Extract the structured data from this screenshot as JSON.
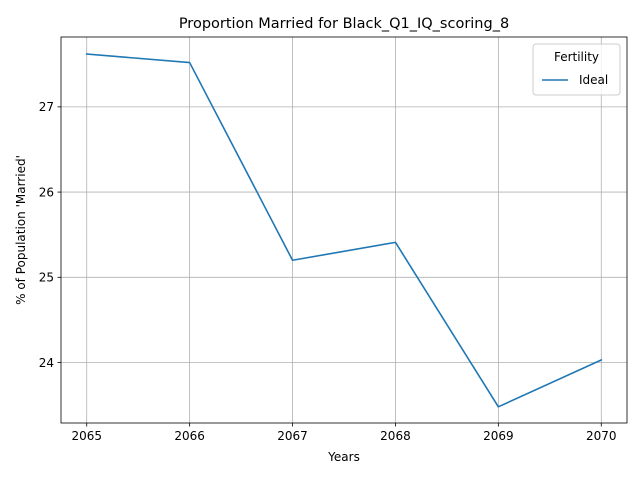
{
  "chart_data": {
    "type": "line",
    "title": "Proportion Married for Black_Q1_IQ_scoring_8",
    "xlabel": "Years",
    "ylabel": "% of Population 'Married'",
    "x": [
      2065,
      2066,
      2067,
      2068,
      2069,
      2070
    ],
    "x_ticks": [
      "2065",
      "2066",
      "2067",
      "2068",
      "2069",
      "2070"
    ],
    "y_ticks": [
      "24",
      "25",
      "26",
      "27"
    ],
    "xlim": [
      2064.75,
      2070.25
    ],
    "ylim": [
      23.29,
      27.82
    ],
    "grid": true,
    "legend_title": "Fertility",
    "legend_position": "top-right",
    "series": [
      {
        "name": "Ideal",
        "color": "#1f77b4",
        "values": [
          27.62,
          27.52,
          25.2,
          25.41,
          23.48,
          24.03
        ]
      }
    ]
  }
}
